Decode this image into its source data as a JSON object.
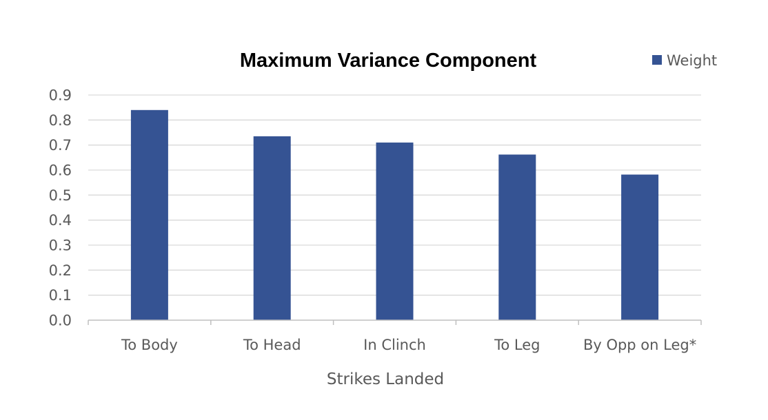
{
  "chart_data": {
    "type": "bar",
    "title": "Maximum Variance Component",
    "xlabel": "Strikes Landed",
    "ylabel": "",
    "categories": [
      "To Body",
      "To Head",
      "In Clinch",
      "To Leg",
      "By Opp on Leg*"
    ],
    "series": [
      {
        "name": "Weight",
        "values": [
          0.84,
          0.735,
          0.71,
          0.662,
          0.582
        ]
      }
    ],
    "ylim": [
      0,
      0.9
    ],
    "yticks": [
      "0.0",
      "0.1",
      "0.2",
      "0.3",
      "0.4",
      "0.5",
      "0.6",
      "0.7",
      "0.8",
      "0.9"
    ],
    "grid": true,
    "legend_position": "top-right",
    "colors": {
      "bar": "#355393",
      "grid": "#d9d9d9",
      "axis": "#bfbfbf"
    }
  }
}
